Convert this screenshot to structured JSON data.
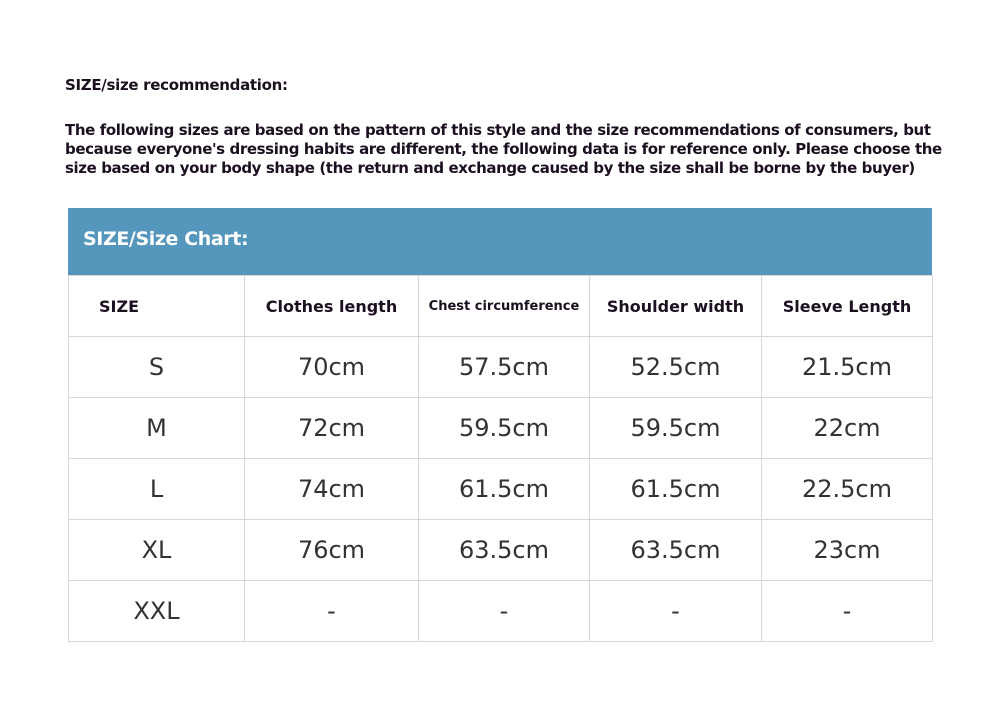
{
  "title": "SIZE/size recommendation:",
  "description": "The following sizes are based on the pattern of this style and the size recommendations of consumers, but because everyone's dressing habits are different, the following data is for reference only. Please choose the size based on your body shape (the return and exchange caused by the size shall be borne by the buyer)",
  "chart_title": "SIZE/Size Chart:",
  "header_color": "#5596bc",
  "columns": [
    "SIZE",
    "Clothes length",
    "Chest circumference",
    "Shoulder width",
    "Sleeve Length"
  ],
  "rows": [
    [
      "S",
      "70cm",
      "57.5cm",
      "52.5cm",
      "21.5cm"
    ],
    [
      "M",
      "72cm",
      "59.5cm",
      "59.5cm",
      "22cm"
    ],
    [
      "L",
      "74cm",
      "61.5cm",
      "61.5cm",
      "22.5cm"
    ],
    [
      "XL",
      "76cm",
      "63.5cm",
      "63.5cm",
      "23cm"
    ],
    [
      "XXL",
      "-",
      "-",
      "-",
      "-"
    ]
  ]
}
